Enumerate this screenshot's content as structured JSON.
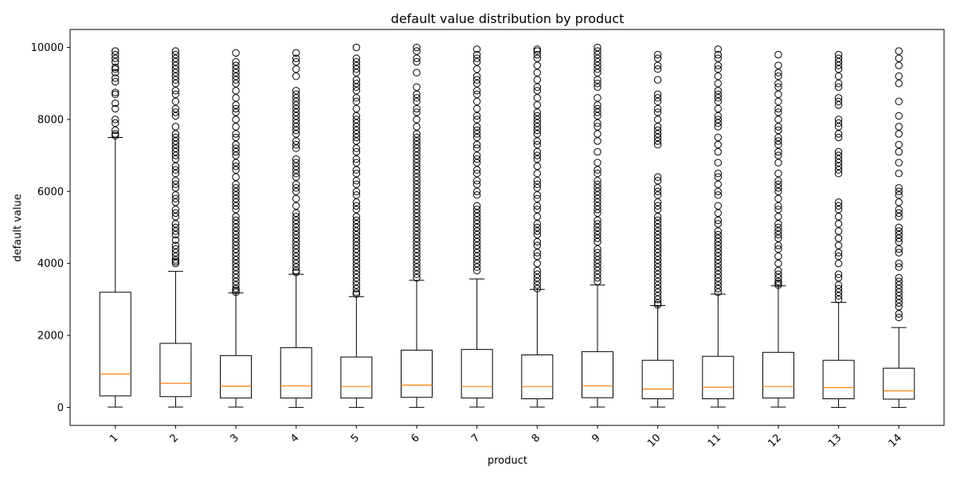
{
  "chart_data": {
    "type": "box",
    "title": "default value distribution by product",
    "xlabel": "product",
    "ylabel": "default value",
    "ylim": [
      -500,
      10500
    ],
    "yticks": [
      0,
      2000,
      4000,
      6000,
      8000,
      10000
    ],
    "grid": false,
    "colors": {
      "box": "#000000",
      "median": "#ff7f0e",
      "flier": "#000000"
    },
    "categories": [
      "1",
      "2",
      "3",
      "4",
      "5",
      "6",
      "7",
      "8",
      "9",
      "10",
      "11",
      "12",
      "13",
      "14"
    ],
    "boxes": [
      {
        "label": "1",
        "whislo": 10,
        "q1": 320,
        "med": 930,
        "q3": 3200,
        "whishi": 7500,
        "fliers": [
          7550,
          7600,
          7700,
          7900,
          8000,
          8300,
          8450,
          8700,
          8750,
          9050,
          9150,
          9300,
          9400,
          9450,
          9600,
          9700,
          9800,
          9900
        ]
      },
      {
        "label": "2",
        "whislo": 10,
        "q1": 300,
        "med": 670,
        "q3": 1780,
        "whishi": 3780,
        "fliers": [
          4000,
          4050,
          4100,
          4200,
          4300,
          4400,
          4500,
          4650,
          4800,
          4900,
          5000,
          5100,
          5300,
          5400,
          5500,
          5700,
          5800,
          5900,
          6100,
          6200,
          6300,
          6500,
          6600,
          6700,
          6900,
          7000,
          7100,
          7200,
          7300,
          7400,
          7500,
          7600,
          7800,
          8100,
          8200,
          8300,
          8500,
          8700,
          8800,
          9000,
          9100,
          9200,
          9300,
          9400,
          9500,
          9600,
          9700,
          9800,
          9900
        ]
      },
      {
        "label": "3",
        "whislo": 10,
        "q1": 260,
        "med": 590,
        "q3": 1440,
        "whishi": 3180,
        "fliers": [
          3200,
          3250,
          3300,
          3400,
          3500,
          3600,
          3700,
          3800,
          3900,
          4000,
          4100,
          4200,
          4300,
          4400,
          4500,
          4600,
          4700,
          4800,
          4900,
          5000,
          5100,
          5200,
          5300,
          5500,
          5600,
          5700,
          5800,
          5900,
          6000,
          6100,
          6200,
          6400,
          6600,
          6700,
          6800,
          7000,
          7100,
          7200,
          7300,
          7500,
          7600,
          7800,
          8000,
          8200,
          8300,
          8400,
          8600,
          8800,
          9000,
          9100,
          9200,
          9300,
          9400,
          9500,
          9600,
          9850
        ]
      },
      {
        "label": "4",
        "whislo": 0,
        "q1": 260,
        "med": 600,
        "q3": 1660,
        "whishi": 3700,
        "fliers": [
          3750,
          3800,
          3900,
          4000,
          4100,
          4200,
          4300,
          4400,
          4500,
          4600,
          4700,
          4800,
          4900,
          5000,
          5100,
          5200,
          5300,
          5400,
          5600,
          5800,
          6000,
          6100,
          6200,
          6400,
          6500,
          6600,
          6700,
          6800,
          6900,
          7200,
          7300,
          7400,
          7600,
          7700,
          7800,
          7900,
          8000,
          8100,
          8200,
          8300,
          8400,
          8500,
          8600,
          8700,
          8800,
          9200,
          9400,
          9600,
          9700,
          9850
        ]
      },
      {
        "label": "5",
        "whislo": 0,
        "q1": 260,
        "med": 580,
        "q3": 1400,
        "whishi": 3080,
        "fliers": [
          3150,
          3200,
          3300,
          3400,
          3500,
          3600,
          3700,
          3800,
          3900,
          4000,
          4100,
          4200,
          4300,
          4400,
          4500,
          4600,
          4700,
          4800,
          4900,
          5000,
          5100,
          5200,
          5300,
          5500,
          5600,
          5700,
          5900,
          6000,
          6200,
          6300,
          6500,
          6600,
          6800,
          6900,
          7100,
          7200,
          7400,
          7500,
          7600,
          7700,
          7800,
          7900,
          8000,
          8100,
          8300,
          8500,
          8600,
          8800,
          8900,
          9000,
          9100,
          9300,
          9400,
          9500,
          9600,
          9700,
          10000
        ]
      },
      {
        "label": "6",
        "whislo": 0,
        "q1": 280,
        "med": 620,
        "q3": 1590,
        "whishi": 3530,
        "fliers": [
          3600,
          3700,
          3800,
          3900,
          4000,
          4100,
          4200,
          4300,
          4400,
          4500,
          4600,
          4700,
          4800,
          4900,
          5000,
          5100,
          5200,
          5300,
          5400,
          5500,
          5600,
          5700,
          5800,
          5900,
          6000,
          6100,
          6200,
          6300,
          6400,
          6500,
          6600,
          6700,
          6800,
          6900,
          7000,
          7100,
          7200,
          7300,
          7400,
          7500,
          7600,
          7800,
          8000,
          8200,
          8300,
          8500,
          8600,
          8700,
          8900,
          9300,
          9600,
          9700,
          9900,
          10000
        ]
      },
      {
        "label": "7",
        "whislo": 10,
        "q1": 260,
        "med": 580,
        "q3": 1610,
        "whishi": 3570,
        "fliers": [
          3800,
          3900,
          4000,
          4100,
          4200,
          4300,
          4400,
          4500,
          4600,
          4700,
          4800,
          4900,
          5000,
          5100,
          5200,
          5300,
          5400,
          5500,
          5600,
          5900,
          6000,
          6200,
          6300,
          6500,
          6600,
          6800,
          6900,
          7000,
          7200,
          7300,
          7500,
          7600,
          7700,
          7800,
          8000,
          8100,
          8300,
          8500,
          8700,
          8800,
          9000,
          9100,
          9200,
          9400,
          9600,
          9700,
          9800,
          9950
        ]
      },
      {
        "label": "8",
        "whislo": 10,
        "q1": 240,
        "med": 580,
        "q3": 1460,
        "whishi": 3280,
        "fliers": [
          3300,
          3400,
          3500,
          3600,
          3700,
          3800,
          4000,
          4200,
          4300,
          4500,
          4600,
          4800,
          4900,
          5000,
          5100,
          5300,
          5500,
          5600,
          5800,
          5900,
          6100,
          6200,
          6300,
          6500,
          6700,
          6900,
          7000,
          7100,
          7300,
          7400,
          7600,
          7700,
          7800,
          7900,
          8000,
          8100,
          8200,
          8400,
          8600,
          8800,
          8900,
          9100,
          9300,
          9500,
          9700,
          9800,
          9900,
          9950
        ]
      },
      {
        "label": "9",
        "whislo": 10,
        "q1": 270,
        "med": 600,
        "q3": 1550,
        "whishi": 3400,
        "fliers": [
          3500,
          3600,
          3700,
          3800,
          3900,
          4000,
          4100,
          4200,
          4300,
          4400,
          4600,
          4700,
          4800,
          4900,
          5000,
          5100,
          5200,
          5400,
          5500,
          5600,
          5700,
          5800,
          5900,
          6000,
          6100,
          6200,
          6300,
          6500,
          6600,
          6800,
          7100,
          7400,
          7600,
          7800,
          7900,
          8100,
          8200,
          8300,
          8400,
          8600,
          8900,
          9000,
          9100,
          9300,
          9400,
          9500,
          9600,
          9700,
          9800,
          9900,
          10000
        ]
      },
      {
        "label": "10",
        "whislo": 10,
        "q1": 240,
        "med": 510,
        "q3": 1310,
        "whishi": 2830,
        "fliers": [
          2850,
          2900,
          3000,
          3100,
          3200,
          3300,
          3400,
          3500,
          3600,
          3700,
          3800,
          3900,
          4000,
          4100,
          4200,
          4300,
          4400,
          4500,
          4600,
          4700,
          4800,
          4900,
          5000,
          5100,
          5200,
          5300,
          5500,
          5600,
          5700,
          5900,
          6000,
          6100,
          6300,
          6400,
          7300,
          7400,
          7500,
          7600,
          7700,
          7800,
          8000,
          8200,
          8300,
          8500,
          8600,
          8700,
          9100,
          9400,
          9500,
          9700,
          9800
        ]
      },
      {
        "label": "11",
        "whislo": 10,
        "q1": 240,
        "med": 560,
        "q3": 1420,
        "whishi": 3150,
        "fliers": [
          3200,
          3300,
          3400,
          3500,
          3600,
          3700,
          3800,
          3900,
          4000,
          4100,
          4200,
          4300,
          4400,
          4500,
          4600,
          4700,
          4800,
          4900,
          5100,
          5200,
          5400,
          5600,
          5900,
          6000,
          6200,
          6400,
          6500,
          6800,
          7100,
          7300,
          7500,
          7800,
          7900,
          8000,
          8100,
          8300,
          8500,
          8600,
          8700,
          8800,
          9000,
          9200,
          9400,
          9500,
          9700,
          9800,
          9950
        ]
      },
      {
        "label": "12",
        "whislo": 10,
        "q1": 260,
        "med": 580,
        "q3": 1530,
        "whishi": 3380,
        "fliers": [
          3400,
          3450,
          3500,
          3600,
          3700,
          3800,
          4000,
          4200,
          4400,
          4500,
          4700,
          4800,
          4900,
          5000,
          5100,
          5300,
          5500,
          5600,
          5800,
          6000,
          6100,
          6200,
          6300,
          6500,
          6800,
          7000,
          7100,
          7300,
          7400,
          7500,
          7700,
          7800,
          8000,
          8200,
          8300,
          8500,
          8700,
          8900,
          9000,
          9200,
          9300,
          9500,
          9800
        ]
      },
      {
        "label": "13",
        "whislo": 0,
        "q1": 240,
        "med": 550,
        "q3": 1310,
        "whishi": 2920,
        "fliers": [
          3000,
          3100,
          3200,
          3300,
          3400,
          3600,
          3700,
          4000,
          4200,
          4300,
          4500,
          4700,
          4900,
          5100,
          5300,
          5500,
          5600,
          5700,
          6500,
          6600,
          6700,
          6800,
          6900,
          7000,
          7100,
          7500,
          7600,
          7800,
          7900,
          8000,
          8400,
          8500,
          8600,
          8900,
          9000,
          9200,
          9400,
          9500,
          9600,
          9700,
          9800
        ]
      },
      {
        "label": "14",
        "whislo": 0,
        "q1": 230,
        "med": 460,
        "q3": 1090,
        "whishi": 2220,
        "fliers": [
          2500,
          2600,
          2800,
          2900,
          3000,
          3100,
          3200,
          3300,
          3400,
          3500,
          3600,
          3900,
          4000,
          4300,
          4400,
          4600,
          4700,
          4800,
          4900,
          5000,
          5300,
          5400,
          5500,
          5700,
          5900,
          6000,
          6100,
          6500,
          6800,
          7100,
          7300,
          7600,
          7800,
          8100,
          8500,
          9000,
          9200,
          9500,
          9700,
          9900
        ]
      }
    ]
  }
}
